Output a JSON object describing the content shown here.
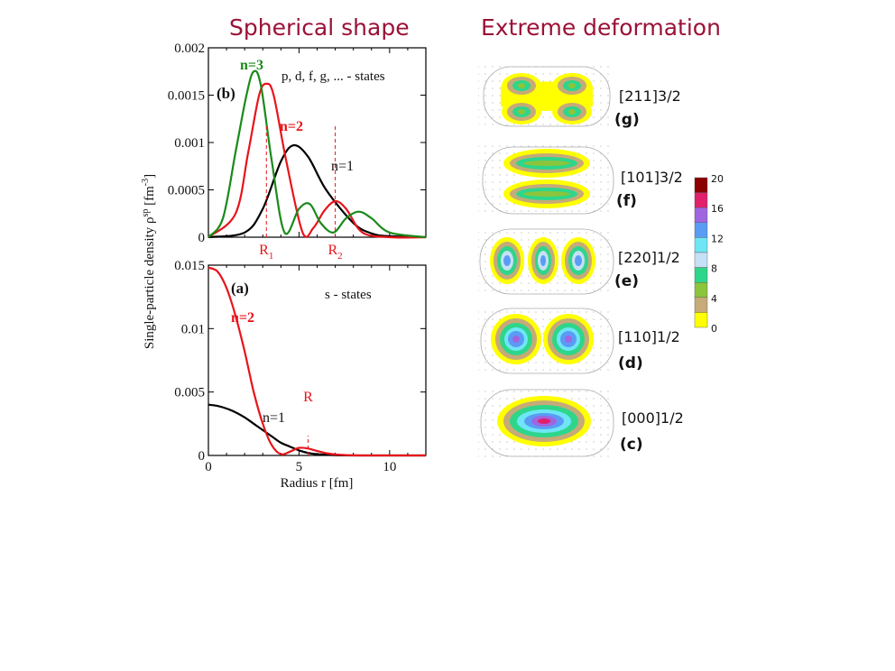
{
  "headings": {
    "left": "Spherical shape",
    "right": "Extreme deformation"
  },
  "colors": {
    "heading": "#9a1237",
    "n1": "#000000",
    "n2": "#e8141a",
    "n3": "#1a8a1a"
  },
  "shared_axes": {
    "xlabel": "Radius  r  [fm]",
    "ylabel_main": "Single-particle density  ρ",
    "ylabel_sup": "sp",
    "ylabel_unit_open": "  [fm",
    "ylabel_unit_sup": "-3",
    "ylabel_unit_close": "]"
  },
  "chart_data": [
    {
      "id": "b",
      "type": "line",
      "panel_label": "(b)",
      "annotation": "p, d, f, g, ... - states",
      "xlim": [
        0,
        12
      ],
      "ylim": [
        0,
        0.002
      ],
      "yticks": [
        "0",
        "0.0005",
        "0.001",
        "0.0015",
        "0.002"
      ],
      "series": [
        {
          "name": "n=1",
          "x": [
            0,
            2,
            3,
            4,
            4.7,
            5.5,
            6.5,
            8,
            9,
            10,
            12
          ],
          "y": [
            0,
            5e-05,
            0.0003,
            0.0008,
            0.00097,
            0.00085,
            0.0005,
            0.00015,
            4e-05,
            1e-05,
            0
          ]
        },
        {
          "name": "n=2",
          "x": [
            0,
            1.5,
            2.2,
            2.8,
            3.2,
            3.6,
            4.3,
            5.2,
            5.8,
            6.4,
            7,
            7.6,
            8.5,
            10,
            12
          ],
          "y": [
            0,
            0.00025,
            0.0009,
            0.0015,
            0.00162,
            0.0015,
            0.0008,
            5e-05,
            0.0001,
            0.00028,
            0.00038,
            0.0003,
            5e-05,
            0,
            0
          ]
        },
        {
          "name": "n=3",
          "x": [
            0,
            0.8,
            1.5,
            2.1,
            2.5,
            2.9,
            3.5,
            4.2,
            5.0,
            5.6,
            6.2,
            6.9,
            7.6,
            8.3,
            9,
            10,
            12
          ],
          "y": [
            0,
            0.0002,
            0.0009,
            0.0015,
            0.00175,
            0.0016,
            0.0008,
            5e-05,
            0.0003,
            0.00035,
            0.00015,
            5e-05,
            0.0002,
            0.00027,
            0.0002,
            5e-05,
            0
          ]
        }
      ],
      "markers": [
        {
          "label": "R",
          "sub": "1",
          "x": 3.2
        },
        {
          "label": "R",
          "sub": "2",
          "x": 7.0
        }
      ]
    },
    {
      "id": "a",
      "type": "line",
      "panel_label": "(a)",
      "annotation": "s - states",
      "xlim": [
        0,
        12
      ],
      "ylim": [
        0,
        0.015
      ],
      "xticks": [
        "0",
        "5",
        "10"
      ],
      "yticks": [
        "0",
        "0.005",
        "0.01",
        "0.015"
      ],
      "series": [
        {
          "name": "n=1",
          "x": [
            0,
            0.5,
            1,
            1.5,
            2,
            2.5,
            3,
            3.5,
            4,
            4.5,
            5,
            5.5,
            6,
            7,
            8,
            9,
            12
          ],
          "y": [
            0.004,
            0.0039,
            0.0037,
            0.0034,
            0.003,
            0.0025,
            0.002,
            0.0015,
            0.001,
            0.0007,
            0.0004,
            0.0002,
            0.0001,
            2e-05,
            0,
            0,
            0
          ]
        },
        {
          "name": "n=2",
          "x": [
            0,
            0.5,
            1,
            1.5,
            2,
            2.5,
            3,
            3.5,
            4,
            4.5,
            5,
            5.5,
            6,
            6.5,
            7,
            8,
            9,
            12
          ],
          "y": [
            0.0148,
            0.0145,
            0.0132,
            0.011,
            0.0082,
            0.005,
            0.0025,
            0.0008,
            0.0001,
            0.0003,
            0.0006,
            0.00055,
            0.00035,
            0.00018,
            8e-05,
            1e-05,
            0,
            0
          ]
        }
      ],
      "markers": [
        {
          "label": "R",
          "sub": "",
          "x": 5.5
        }
      ]
    }
  ],
  "orbitals": [
    {
      "label": "[211]3/2",
      "tag": "(g)"
    },
    {
      "label": "[101]3/2",
      "tag": "(f)"
    },
    {
      "label": "[220]1/2",
      "tag": "(e)"
    },
    {
      "label": "[110]1/2",
      "tag": "(d)"
    },
    {
      "label": "[000]1/2",
      "tag": "(c)"
    }
  ],
  "colorbar": {
    "ticks": [
      "20",
      "16",
      "12",
      "8",
      "4",
      "0"
    ],
    "colors": [
      "#8b0000",
      "#e0206a",
      "#a066e0",
      "#5a9cf5",
      "#6ee6f5",
      "#c6e0f5",
      "#2ed68a",
      "#8cc43c",
      "#c6aa78",
      "#ffff00"
    ]
  }
}
